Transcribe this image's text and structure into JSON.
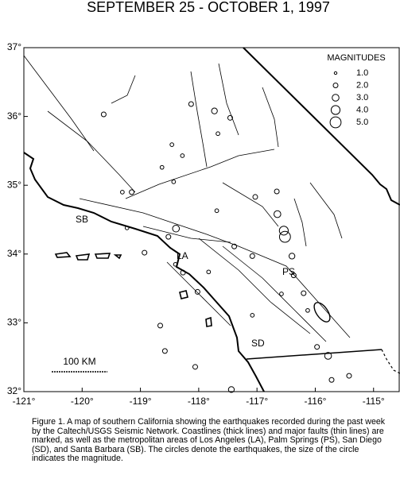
{
  "title": "SEPTEMBER 25 - OCTOBER 1, 1997",
  "map": {
    "xlim": [
      -121,
      -114.56
    ],
    "ylim": [
      32,
      37
    ],
    "xticks": [
      {
        "value": -121,
        "label": "-121°"
      },
      {
        "value": -120,
        "label": "-120°"
      },
      {
        "value": -119,
        "label": "-119°"
      },
      {
        "value": -118,
        "label": "-118°"
      },
      {
        "value": -117,
        "label": "-117°"
      },
      {
        "value": -116,
        "label": "-116°"
      },
      {
        "value": -115,
        "label": "-115°"
      }
    ],
    "yticks": [
      {
        "value": 32,
        "label": "32°"
      },
      {
        "value": 33,
        "label": "33°"
      },
      {
        "value": 34,
        "label": "34°"
      },
      {
        "value": 35,
        "label": "35°"
      },
      {
        "value": 36,
        "label": "36°"
      },
      {
        "value": 37,
        "label": "37°"
      }
    ],
    "legend_title": "MAGNITUDES",
    "legend": [
      {
        "value": 1,
        "label": "1.0"
      },
      {
        "value": 2,
        "label": "2.0"
      },
      {
        "value": 3,
        "label": "3.0"
      },
      {
        "value": 4,
        "label": "4.0"
      },
      {
        "value": 5,
        "label": "5.0"
      }
    ],
    "places": [
      "SB",
      "LA",
      "PS",
      "SD"
    ],
    "scale_label": "100 KM",
    "earthquakes": [
      {
        "lon": -119.63,
        "lat": 36.03,
        "mag": 2
      },
      {
        "lon": -118.13,
        "lat": 36.18,
        "mag": 2
      },
      {
        "lon": -117.73,
        "lat": 36.08,
        "mag": 2.5
      },
      {
        "lon": -117.67,
        "lat": 35.75,
        "mag": 1.5
      },
      {
        "lon": -117.46,
        "lat": 35.98,
        "mag": 2
      },
      {
        "lon": -118.46,
        "lat": 35.59,
        "mag": 1.5
      },
      {
        "lon": -118.28,
        "lat": 35.43,
        "mag": 1.5
      },
      {
        "lon": -118.63,
        "lat": 35.26,
        "mag": 1.5
      },
      {
        "lon": -119.15,
        "lat": 34.9,
        "mag": 2
      },
      {
        "lon": -119.31,
        "lat": 34.9,
        "mag": 1.5
      },
      {
        "lon": -118.43,
        "lat": 35.05,
        "mag": 1.5
      },
      {
        "lon": -117.03,
        "lat": 34.83,
        "mag": 2
      },
      {
        "lon": -116.66,
        "lat": 34.91,
        "mag": 2
      },
      {
        "lon": -117.69,
        "lat": 34.63,
        "mag": 1.5
      },
      {
        "lon": -116.65,
        "lat": 34.58,
        "mag": 3
      },
      {
        "lon": -116.52,
        "lat": 34.25,
        "mag": 5
      },
      {
        "lon": -116.54,
        "lat": 34.34,
        "mag": 4
      },
      {
        "lon": -118.39,
        "lat": 34.37,
        "mag": 3
      },
      {
        "lon": -118.52,
        "lat": 34.25,
        "mag": 2
      },
      {
        "lon": -119.23,
        "lat": 34.38,
        "mag": 1.5
      },
      {
        "lon": -118.93,
        "lat": 34.02,
        "mag": 2
      },
      {
        "lon": -117.39,
        "lat": 34.11,
        "mag": 2
      },
      {
        "lon": -117.08,
        "lat": 33.97,
        "mag": 2
      },
      {
        "lon": -116.4,
        "lat": 33.97,
        "mag": 2.5
      },
      {
        "lon": -116.37,
        "lat": 33.69,
        "mag": 2
      },
      {
        "lon": -116.2,
        "lat": 33.43,
        "mag": 2
      },
      {
        "lon": -116.58,
        "lat": 33.42,
        "mag": 1.5
      },
      {
        "lon": -116.13,
        "lat": 33.18,
        "mag": 1.5
      },
      {
        "lon": -118.02,
        "lat": 33.45,
        "mag": 2
      },
      {
        "lon": -118.27,
        "lat": 33.73,
        "mag": 2
      },
      {
        "lon": -118.4,
        "lat": 33.85,
        "mag": 1.5
      },
      {
        "lon": -117.83,
        "lat": 33.74,
        "mag": 1.5
      },
      {
        "lon": -118.66,
        "lat": 32.96,
        "mag": 2
      },
      {
        "lon": -118.58,
        "lat": 32.59,
        "mag": 2
      },
      {
        "lon": -118.06,
        "lat": 32.36,
        "mag": 2
      },
      {
        "lon": -117.44,
        "lat": 32.03,
        "mag": 2.5
      },
      {
        "lon": -117.08,
        "lat": 33.11,
        "mag": 1.5
      },
      {
        "lon": -115.97,
        "lat": 32.65,
        "mag": 2
      },
      {
        "lon": -115.72,
        "lat": 32.17,
        "mag": 2
      },
      {
        "lon": -115.42,
        "lat": 32.23,
        "mag": 2
      },
      {
        "lon": -115.78,
        "lat": 32.52,
        "mag": 3
      }
    ]
  },
  "caption": "Figure 1. A map of southern California showing the earthquakes recorded during the past week by the Caltech/USGS Seismic Network.  Coastlines (thick lines) and major faults (thin lines) are marked, as well as the metropolitan areas of Los Angeles (LA), Palm Springs (PS), San Diego (SD), and Santa Barbara (SB).  The circles denote the earthquakes, the size of the circle indicates the magnitude."
}
